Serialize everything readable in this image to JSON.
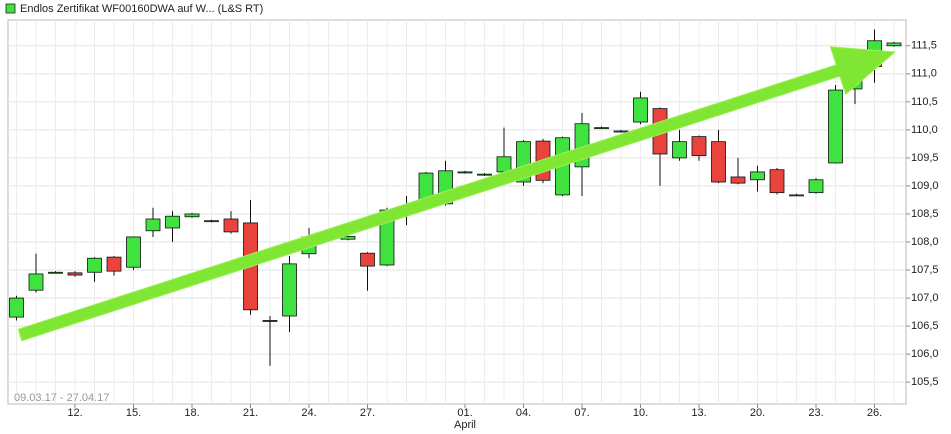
{
  "chart_data": {
    "type": "candlestick",
    "title": "Endlos Zertifikat WF00160DWA auf W... (L&S RT)",
    "date_range": "09.03.17 - 27.04.17",
    "month_label": "April",
    "categories": [
      null,
      null,
      null,
      "12.",
      null,
      null,
      "15.",
      null,
      null,
      "18.",
      null,
      null,
      "21.",
      null,
      null,
      "24.",
      null,
      null,
      "27.",
      null,
      null,
      null,
      null,
      "01.",
      null,
      null,
      "04.",
      null,
      null,
      "07.",
      null,
      null,
      "10.",
      null,
      null,
      "13.",
      null,
      null,
      "20.",
      null,
      null,
      "23.",
      null,
      null,
      "26.",
      null
    ],
    "open": [
      106.66,
      107.14,
      107.45,
      107.45,
      107.46,
      107.73,
      107.55,
      108.2,
      108.25,
      108.45,
      108.37,
      108.41,
      108.34,
      106.6,
      106.68,
      107.79,
      108.09,
      108.05,
      107.8,
      107.59,
      108.55,
      108.63,
      108.68,
      109.24,
      109.2,
      109.25,
      109.07,
      109.8,
      108.84,
      109.34,
      110.03,
      109.97,
      110.14,
      110.38,
      109.5,
      109.88,
      109.79,
      109.16,
      109.11,
      109.29,
      108.83,
      108.88,
      109.41,
      110.73,
      111.13,
      111.5
    ],
    "high": [
      107.04,
      107.79,
      107.48,
      107.48,
      107.73,
      107.75,
      108.1,
      108.61,
      108.55,
      108.52,
      108.4,
      108.55,
      108.75,
      106.68,
      107.75,
      108.25,
      108.12,
      108.12,
      107.82,
      108.61,
      108.82,
      109.25,
      109.45,
      109.27,
      109.23,
      110.04,
      109.82,
      109.84,
      109.88,
      110.3,
      110.06,
      110.0,
      110.68,
      110.4,
      110.0,
      109.9,
      110.0,
      109.5,
      109.36,
      109.32,
      108.86,
      109.14,
      110.8,
      111.1,
      111.79,
      111.57
    ],
    "low": [
      106.6,
      107.1,
      107.44,
      107.38,
      107.29,
      107.4,
      107.5,
      108.09,
      108.0,
      108.43,
      108.35,
      108.15,
      106.7,
      105.79,
      106.39,
      107.71,
      108.07,
      108.03,
      107.13,
      107.57,
      108.3,
      108.6,
      108.65,
      109.22,
      109.18,
      109.2,
      109.0,
      109.05,
      108.82,
      108.82,
      110.02,
      109.95,
      110.1,
      109.0,
      109.45,
      109.45,
      109.05,
      109.03,
      108.9,
      108.85,
      108.82,
      108.86,
      109.4,
      110.46,
      110.84,
      111.48
    ],
    "close": [
      107.0,
      107.43,
      107.46,
      107.41,
      107.71,
      107.48,
      108.09,
      108.41,
      108.46,
      108.5,
      108.38,
      108.18,
      106.79,
      106.59,
      107.61,
      108.09,
      108.1,
      108.1,
      107.57,
      108.57,
      108.6,
      109.23,
      109.27,
      109.25,
      109.21,
      109.52,
      109.79,
      109.1,
      109.86,
      110.11,
      110.04,
      109.98,
      110.57,
      109.57,
      109.79,
      109.54,
      109.07,
      109.05,
      109.25,
      108.88,
      108.84,
      109.11,
      110.71,
      111.07,
      111.59,
      111.55
    ],
    "up_color": "#3fe23f",
    "down_color": "#e8433d",
    "ylim": [
      105.11,
      111.96
    ],
    "yticks": [
      {
        "value": 105.5,
        "label": "105,5"
      },
      {
        "value": 106,
        "label": "106,0"
      },
      {
        "value": 106.5,
        "label": "106,5"
      },
      {
        "value": 107,
        "label": "107,0"
      },
      {
        "value": 107.5,
        "label": "107,5"
      },
      {
        "value": 108,
        "label": "108,0"
      },
      {
        "value": 108.5,
        "label": "108,5"
      },
      {
        "value": 109,
        "label": "109,0"
      },
      {
        "value": 109.5,
        "label": "109,5"
      },
      {
        "value": 110,
        "label": "110,0"
      },
      {
        "value": 110.5,
        "label": "110,5"
      },
      {
        "value": 111,
        "label": "111,0"
      },
      {
        "value": 111.5,
        "label": "111,5"
      }
    ],
    "grid": true
  }
}
